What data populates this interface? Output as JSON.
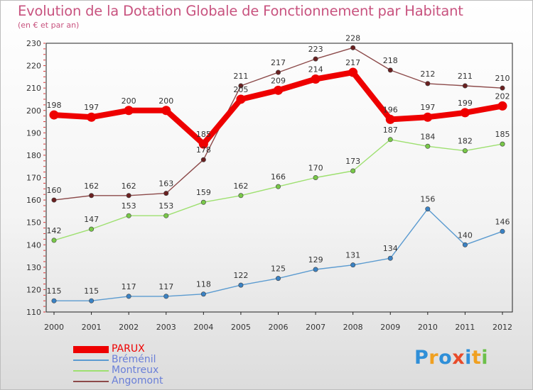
{
  "title": "Evolution de la Dotation Globale de Fonctionnement par Habitant",
  "subtitle": "(en € et par an)",
  "logo": {
    "letters": [
      "P",
      "r",
      "o",
      "x",
      "i",
      "t",
      "i"
    ],
    "colors": [
      "#2f8fd8",
      "#f0a020",
      "#2f8fd8",
      "#e84b2a",
      "#2f8fd8",
      "#f0a020",
      "#6cc04a"
    ]
  },
  "chart_data": {
    "type": "line",
    "title": "Evolution de la Dotation Globale de Fonctionnement par Habitant",
    "subtitle": "(en € et par an)",
    "x": [
      "2000",
      "2001",
      "2002",
      "2003",
      "2004",
      "2005",
      "2006",
      "2007",
      "2008",
      "2009",
      "2010",
      "2011",
      "2012"
    ],
    "ylim": [
      110,
      230
    ],
    "yticks": [
      "110",
      "120",
      "130",
      "140",
      "150",
      "160",
      "170",
      "180",
      "190",
      "200",
      "210",
      "220",
      "230"
    ],
    "grid": false,
    "legend_position": "bottom-left",
    "series": [
      {
        "name": "PARUX",
        "color": "#ee0000",
        "labelColor": "#ee0000",
        "marker": "#ee0000",
        "thick": true,
        "values": [
          198,
          197,
          200,
          200,
          185,
          205,
          209,
          214,
          217,
          196,
          197,
          199,
          202
        ]
      },
      {
        "name": "Bréménil",
        "color": "#5b9bd0",
        "labelColor": "#6a7fd8",
        "marker": "#3a82c4",
        "thick": false,
        "values": [
          115,
          115,
          117,
          117,
          118,
          122,
          125,
          129,
          131,
          134,
          156,
          140,
          146
        ]
      },
      {
        "name": "Montreux",
        "color": "#9ee070",
        "labelColor": "#6a7fd8",
        "marker": "#78c848",
        "thick": false,
        "values": [
          142,
          147,
          153,
          153,
          159,
          162,
          166,
          170,
          173,
          187,
          184,
          182,
          185
        ]
      },
      {
        "name": "Angomont",
        "color": "#8c4a4a",
        "labelColor": "#6a7fd8",
        "marker": "#6a2020",
        "thick": false,
        "values": [
          160,
          162,
          162,
          163,
          178,
          211,
          217,
          223,
          228,
          218,
          212,
          211,
          210
        ]
      }
    ]
  }
}
